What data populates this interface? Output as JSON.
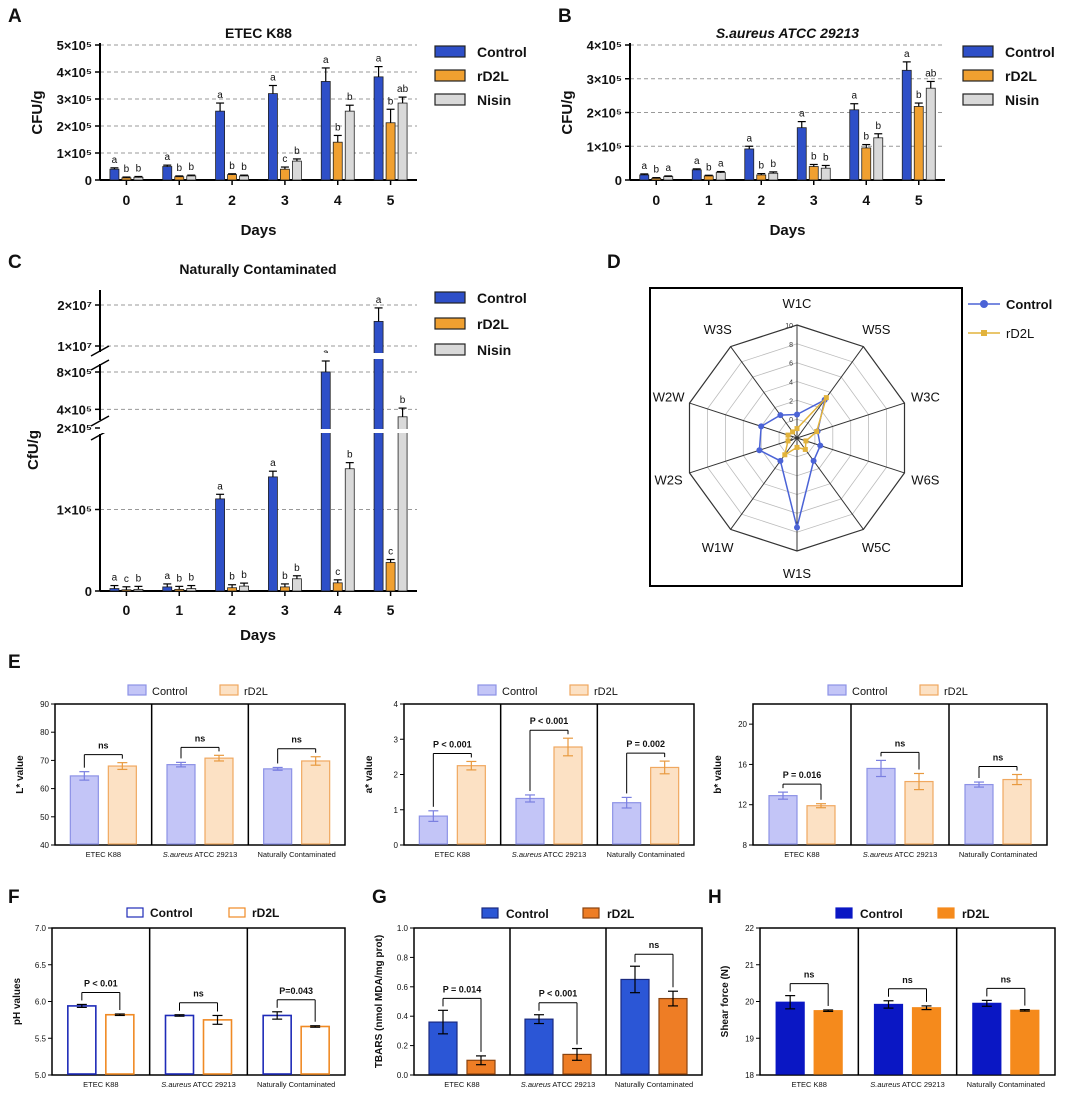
{
  "colors": {
    "control": "#2E4FC8",
    "rd2l": "#F0A030",
    "nisin": "#D9D9D9",
    "control_light": "#C3C5F7",
    "rd2l_light": "#FCE1C4",
    "control_dark": "#1E2BB8",
    "rd2l_dark": "#F08A24",
    "control_g": "#2B56D6",
    "rd2l_g": "#EE7D25",
    "h_control": "#0A17C4",
    "h_rd2l": "#F58A1C",
    "radar_control": "#4B63D6",
    "radar_rd2l": "#E2B33C"
  },
  "panels": {
    "A": {
      "letter": "A",
      "title": "ETEC K88",
      "ylabel": "CFU/g",
      "xlabel": "Days",
      "yticks": [
        "0",
        "1×10⁵",
        "2×10⁵",
        "3×10⁵",
        "4×10⁵",
        "5×10⁵"
      ],
      "legend": [
        "Control",
        "rD2L",
        "Nisin"
      ]
    },
    "B": {
      "letter": "B",
      "title": "S.aureus ATCC 29213",
      "ylabel": "CFU/g",
      "xlabel": "Days",
      "yticks": [
        "0",
        "1×10⁵",
        "2×10⁵",
        "3×10⁵",
        "4×10⁵"
      ],
      "legend": [
        "Control",
        "rD2L",
        "Nisin"
      ]
    },
    "C": {
      "letter": "C",
      "title": "Naturally Contaminated",
      "ylabel": "CfU/g",
      "xlabel": "Days",
      "yticks_low": [
        "0",
        "1×10⁵",
        "2×10⁵"
      ],
      "yticks_mid": [
        "4×10⁵",
        "8×10⁵"
      ],
      "yticks_high": [
        "1×10⁷",
        "2×10⁷"
      ],
      "legend": [
        "Control",
        "rD2L",
        "Nisin"
      ]
    },
    "D": {
      "letter": "D",
      "legend": [
        "Control",
        "rD2L"
      ],
      "rings": [
        "-2",
        "0",
        "2",
        "4",
        "6",
        "8",
        "10"
      ]
    },
    "E": {
      "letter": "E",
      "legend": [
        "Control",
        "rD2L"
      ],
      "groups": [
        "ETEC K88",
        "S.aureus",
        "ATCC 29213",
        "Naturally Contaminated"
      ]
    },
    "F": {
      "letter": "F",
      "ylabel": "pH values",
      "legend": [
        "Control",
        "rD2L"
      ],
      "yticks": [
        "5.0",
        "5.5",
        "6.0",
        "6.5",
        "7.0"
      ]
    },
    "G": {
      "letter": "G",
      "ylabel": "TBARS (nmol MDA/mg prot)",
      "legend": [
        "Control",
        "rD2L"
      ],
      "yticks": [
        "0.0",
        "0.2",
        "0.4",
        "0.6",
        "0.8",
        "1.0"
      ]
    },
    "H": {
      "letter": "H",
      "ylabel": "Shear force (N)",
      "legend": [
        "Control",
        "rD2L"
      ],
      "yticks": [
        "18",
        "19",
        "20",
        "21",
        "22"
      ]
    }
  },
  "chart_data": [
    {
      "id": "A",
      "type": "bar",
      "title": "ETEC K88",
      "xlabel": "Days",
      "ylabel": "CFU/g",
      "categories": [
        "0",
        "1",
        "2",
        "3",
        "4",
        "5"
      ],
      "ylim": [
        0,
        500000
      ],
      "series": [
        {
          "name": "Control",
          "values": [
            40000,
            50000,
            255000,
            320000,
            365000,
            382000
          ],
          "errors": [
            5000,
            5000,
            30000,
            30000,
            50000,
            38000
          ],
          "letters": [
            "a",
            "a",
            "a",
            "a",
            "a",
            "a"
          ]
        },
        {
          "name": "rD2L",
          "values": [
            8000,
            12000,
            20000,
            40000,
            140000,
            212000
          ],
          "errors": [
            3000,
            3000,
            3000,
            8000,
            25000,
            50000
          ],
          "letters": [
            "b",
            "b",
            "b",
            "c",
            "b",
            "b"
          ]
        },
        {
          "name": "Nisin",
          "values": [
            10000,
            15000,
            15000,
            70000,
            255000,
            285000
          ],
          "errors": [
            3000,
            3000,
            3000,
            8000,
            22000,
            22000
          ],
          "letters": [
            "b",
            "b",
            "b",
            "b",
            "b",
            "ab"
          ]
        }
      ]
    },
    {
      "id": "B",
      "type": "bar",
      "title": "S.aureus ATCC 29213",
      "xlabel": "Days",
      "ylabel": "CFU/g",
      "categories": [
        "0",
        "1",
        "2",
        "3",
        "4",
        "5"
      ],
      "ylim": [
        0,
        400000
      ],
      "series": [
        {
          "name": "Control",
          "values": [
            15000,
            30000,
            92000,
            155000,
            208000,
            325000
          ],
          "errors": [
            3000,
            3000,
            8000,
            18000,
            18000,
            25000
          ],
          "letters": [
            "a",
            "a",
            "a",
            "a",
            "a",
            "a"
          ]
        },
        {
          "name": "rD2L",
          "values": [
            5000,
            12000,
            15000,
            40000,
            95000,
            218000
          ],
          "errors": [
            2000,
            2000,
            4000,
            6000,
            10000,
            10000
          ],
          "letters": [
            "b",
            "b",
            "b",
            "b",
            "b",
            "b"
          ]
        },
        {
          "name": "Nisin",
          "values": [
            10000,
            22000,
            20000,
            35000,
            125000,
            272000
          ],
          "errors": [
            2000,
            3000,
            4000,
            8000,
            12000,
            20000
          ],
          "letters": [
            "a",
            "a",
            "b",
            "b",
            "b",
            "ab"
          ]
        }
      ]
    },
    {
      "id": "C",
      "type": "bar",
      "title": "Naturally Contaminated",
      "xlabel": "Days",
      "ylabel": "CfU/g",
      "categories": [
        "0",
        "1",
        "2",
        "3",
        "4",
        "5"
      ],
      "y_axis": "broken: 0–2×10⁵, 2×10⁵–8×10⁵, 1×10⁷–2×10⁷",
      "series": [
        {
          "name": "Control",
          "values": [
            3000,
            5000,
            113000,
            140000,
            820000,
            16000000
          ],
          "letters": [
            "a",
            "a",
            "a",
            "a",
            "a",
            "a"
          ]
        },
        {
          "name": "rD2L",
          "values": [
            1500,
            2000,
            4000,
            5000,
            10000,
            35000
          ],
          "letters": [
            "c",
            "b",
            "b",
            "b",
            "c",
            "c"
          ]
        },
        {
          "name": "Nisin",
          "values": [
            2000,
            3000,
            6000,
            15000,
            150000,
            320000
          ],
          "letters": [
            "b",
            "b",
            "b",
            "b",
            "b",
            "b"
          ]
        }
      ]
    },
    {
      "id": "D",
      "type": "radar",
      "axes": [
        "W1C",
        "W5S",
        "W3C",
        "W6S",
        "W5C",
        "W1S",
        "W1W",
        "W2S",
        "W2W",
        "W3S"
      ],
      "range": [
        -2,
        10
      ],
      "series": [
        {
          "name": "Control",
          "values": [
            0.5,
            3.0,
            0.3,
            0.6,
            1.0,
            7.5,
            1.0,
            2.2,
            2.0,
            1.0
          ]
        },
        {
          "name": "rD2L",
          "values": [
            -1.0,
            3.3,
            0.2,
            -1.0,
            -0.5,
            -1.0,
            0.2,
            -1.0,
            -1.0,
            -1.2
          ]
        }
      ]
    },
    {
      "id": "E1",
      "type": "bar",
      "ylabel": "L* value",
      "ylim": [
        40,
        90
      ],
      "yticks": [
        40,
        50,
        60,
        70,
        80,
        90
      ],
      "categories": [
        "ETEC K88",
        "S.aureus ATCC 29213",
        "Naturally Contaminated"
      ],
      "series": [
        {
          "name": "Control",
          "values": [
            64.5,
            68.5,
            67.0
          ],
          "errors": [
            1.5,
            0.8,
            0.5
          ]
        },
        {
          "name": "rD2L",
          "values": [
            68.0,
            70.8,
            69.8
          ],
          "errors": [
            1.2,
            1.0,
            1.5
          ]
        }
      ],
      "annotations": [
        "ns",
        "ns",
        "ns"
      ]
    },
    {
      "id": "E2",
      "type": "bar",
      "ylabel": "a* value",
      "ylim": [
        0,
        4
      ],
      "yticks": [
        0,
        1,
        2,
        3,
        4
      ],
      "categories": [
        "ETEC K88",
        "S.aureus ATCC 29213",
        "Naturally Contaminated"
      ],
      "series": [
        {
          "name": "Control",
          "values": [
            0.82,
            1.32,
            1.2
          ],
          "errors": [
            0.15,
            0.1,
            0.15
          ]
        },
        {
          "name": "rD2L",
          "values": [
            2.25,
            2.78,
            2.2
          ],
          "errors": [
            0.12,
            0.25,
            0.18
          ]
        }
      ],
      "annotations": [
        "P < 0.001",
        "P < 0.001",
        "P = 0.002"
      ]
    },
    {
      "id": "E3",
      "type": "bar",
      "ylabel": "b* value",
      "ylim": [
        8,
        22
      ],
      "yticks": [
        8,
        12,
        16,
        20
      ],
      "categories": [
        "ETEC K88",
        "S.aureus ATCC 29213",
        "Naturally Contaminated"
      ],
      "series": [
        {
          "name": "Control",
          "values": [
            12.9,
            15.6,
            14.0
          ],
          "errors": [
            0.35,
            0.8,
            0.25
          ]
        },
        {
          "name": "rD2L",
          "values": [
            11.9,
            14.3,
            14.5
          ],
          "errors": [
            0.2,
            0.8,
            0.5
          ]
        }
      ],
      "annotations": [
        "P = 0.016",
        "ns",
        "ns"
      ]
    },
    {
      "id": "F",
      "type": "bar",
      "ylabel": "pH values",
      "ylim": [
        5.0,
        7.0
      ],
      "yticks": [
        5.0,
        5.5,
        6.0,
        6.5,
        7.0
      ],
      "categories": [
        "ETEC K88",
        "S.aureus ATCC 29213",
        "Naturally Contaminated"
      ],
      "series": [
        {
          "name": "Control",
          "values": [
            5.94,
            5.81,
            5.81
          ],
          "errors": [
            0.02,
            0.01,
            0.05
          ]
        },
        {
          "name": "rD2L",
          "values": [
            5.82,
            5.75,
            5.66
          ],
          "errors": [
            0.01,
            0.06,
            0.01
          ]
        }
      ],
      "annotations": [
        "P < 0.01",
        "ns",
        "P=0.043"
      ]
    },
    {
      "id": "G",
      "type": "bar",
      "ylabel": "TBARS (nmol MDA/mg prot)",
      "ylim": [
        0,
        1.0
      ],
      "yticks": [
        0,
        0.2,
        0.4,
        0.6,
        0.8,
        1.0
      ],
      "categories": [
        "ETEC K88",
        "S.aureus ATCC 29213",
        "Naturally Contaminated"
      ],
      "series": [
        {
          "name": "Control",
          "values": [
            0.36,
            0.38,
            0.65
          ],
          "errors": [
            0.08,
            0.03,
            0.09
          ]
        },
        {
          "name": "rD2L",
          "values": [
            0.1,
            0.14,
            0.52
          ],
          "errors": [
            0.03,
            0.04,
            0.05
          ]
        }
      ],
      "annotations": [
        "P = 0.014",
        "P < 0.001",
        "ns"
      ]
    },
    {
      "id": "H",
      "type": "bar",
      "ylabel": "Shear force (N)",
      "ylim": [
        18,
        22
      ],
      "yticks": [
        18,
        19,
        20,
        21,
        22
      ],
      "categories": [
        "ETEC K88",
        "S.aureus ATCC 29213",
        "Naturally Contaminated"
      ],
      "series": [
        {
          "name": "Control",
          "values": [
            19.98,
            19.92,
            19.95
          ],
          "errors": [
            0.18,
            0.1,
            0.08
          ]
        },
        {
          "name": "rD2L",
          "values": [
            19.75,
            19.83,
            19.76
          ],
          "errors": [
            0.02,
            0.05,
            0.02
          ]
        }
      ],
      "annotations": [
        "ns",
        "ns",
        "ns"
      ]
    }
  ]
}
